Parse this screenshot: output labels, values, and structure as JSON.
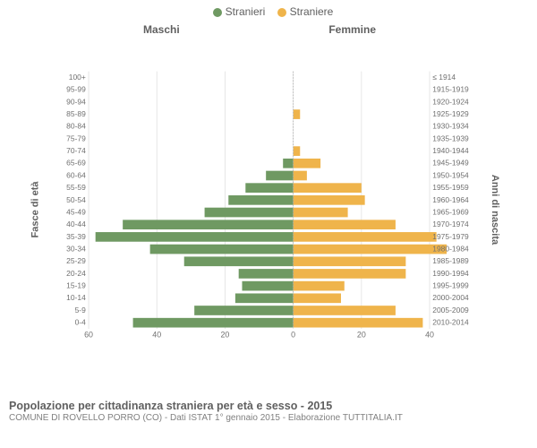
{
  "legend": {
    "male": "Stranieri",
    "female": "Straniere"
  },
  "columns": {
    "male": "Maschi",
    "female": "Femmine"
  },
  "axis_left_label": "Fasce di età",
  "axis_right_label": "Anni di nascita",
  "title": "Popolazione per cittadinanza straniera per età e sesso - 2015",
  "subtitle": "COMUNE DI ROVELLO PORRO (CO) - Dati ISTAT 1° gennaio 2015 - Elaborazione TUTTITALIA.IT",
  "chart": {
    "type": "population-pyramid",
    "xlim_male": [
      60,
      0
    ],
    "xlim_female": [
      0,
      40
    ],
    "xtick_step": 20,
    "background_color": "#ffffff",
    "grid_color": "#e0e0e0",
    "male_color": "#6f9962",
    "female_color": "#efb44b",
    "bar_height_ratio": 0.78,
    "xticks_shown": {
      "male": [
        60,
        40,
        20,
        0
      ],
      "female": [
        0,
        20,
        40
      ]
    },
    "rows": [
      {
        "age": "100+",
        "birth": "≤ 1914",
        "m": 0,
        "f": 0
      },
      {
        "age": "95-99",
        "birth": "1915-1919",
        "m": 0,
        "f": 0
      },
      {
        "age": "90-94",
        "birth": "1920-1924",
        "m": 0,
        "f": 0
      },
      {
        "age": "85-89",
        "birth": "1925-1929",
        "m": 0,
        "f": 2
      },
      {
        "age": "80-84",
        "birth": "1930-1934",
        "m": 0,
        "f": 0
      },
      {
        "age": "75-79",
        "birth": "1935-1939",
        "m": 0,
        "f": 0
      },
      {
        "age": "70-74",
        "birth": "1940-1944",
        "m": 0,
        "f": 2
      },
      {
        "age": "65-69",
        "birth": "1945-1949",
        "m": 3,
        "f": 8
      },
      {
        "age": "60-64",
        "birth": "1950-1954",
        "m": 8,
        "f": 4
      },
      {
        "age": "55-59",
        "birth": "1955-1959",
        "m": 14,
        "f": 20
      },
      {
        "age": "50-54",
        "birth": "1960-1964",
        "m": 19,
        "f": 21
      },
      {
        "age": "45-49",
        "birth": "1965-1969",
        "m": 26,
        "f": 16
      },
      {
        "age": "40-44",
        "birth": "1970-1974",
        "m": 50,
        "f": 30
      },
      {
        "age": "35-39",
        "birth": "1975-1979",
        "m": 58,
        "f": 42
      },
      {
        "age": "30-34",
        "birth": "1980-1984",
        "m": 42,
        "f": 45
      },
      {
        "age": "25-29",
        "birth": "1985-1989",
        "m": 32,
        "f": 33
      },
      {
        "age": "20-24",
        "birth": "1990-1994",
        "m": 16,
        "f": 33
      },
      {
        "age": "15-19",
        "birth": "1995-1999",
        "m": 15,
        "f": 15
      },
      {
        "age": "10-14",
        "birth": "2000-2004",
        "m": 17,
        "f": 14
      },
      {
        "age": "5-9",
        "birth": "2005-2009",
        "m": 29,
        "f": 30
      },
      {
        "age": "0-4",
        "birth": "2010-2014",
        "m": 47,
        "f": 38
      }
    ]
  }
}
